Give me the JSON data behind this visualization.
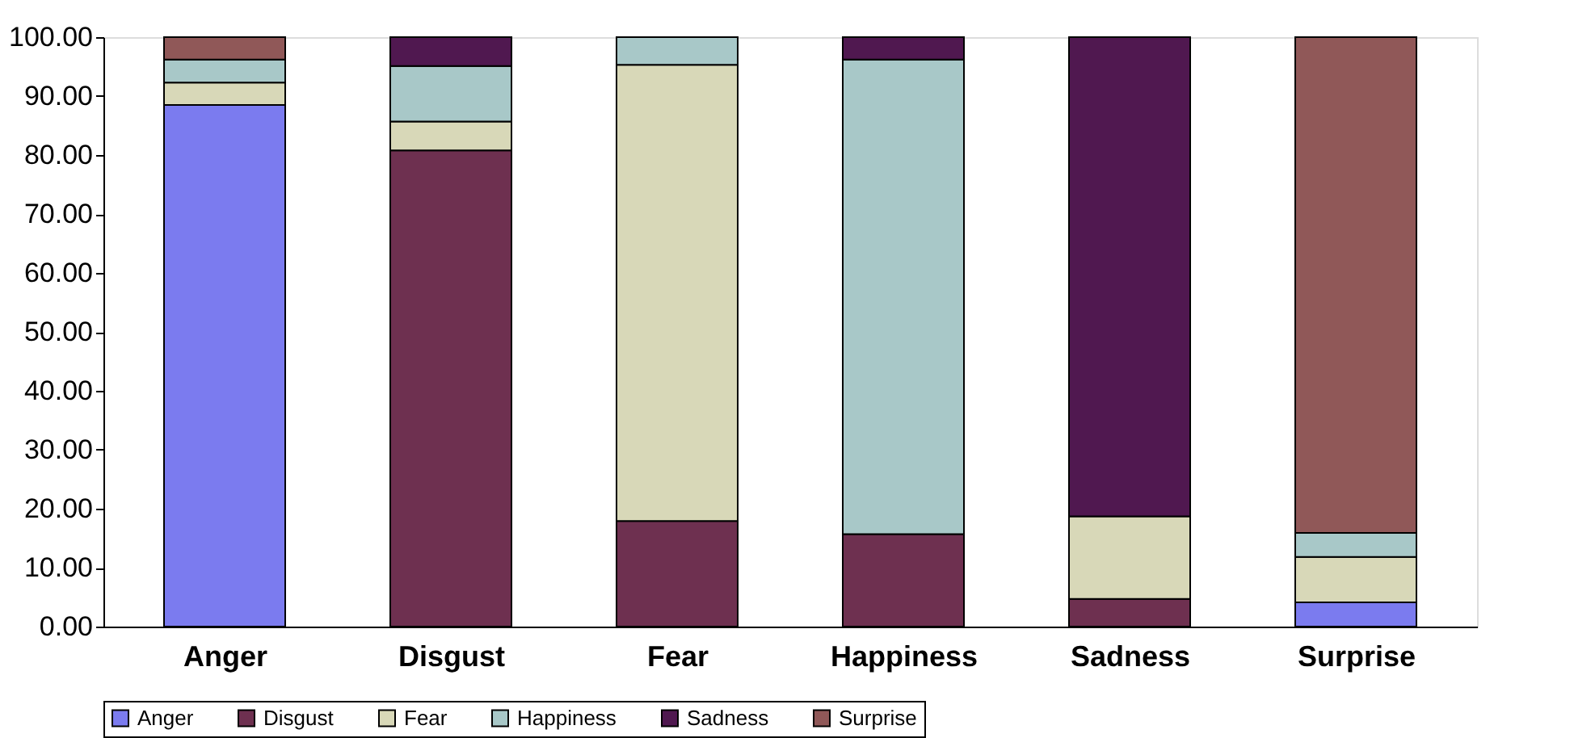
{
  "chart_data": {
    "type": "bar",
    "stacked": true,
    "categories": [
      "Anger",
      "Disgust",
      "Fear",
      "Happiness",
      "Sadness",
      "Surprise"
    ],
    "series": [
      {
        "name": "Anger",
        "color": "#7b7bef",
        "values": [
          88.5,
          0,
          0,
          0,
          0,
          4.1
        ]
      },
      {
        "name": "Disgust",
        "color": "#6e3050",
        "values": [
          0,
          80.8,
          17.9,
          15.7,
          4.7,
          0
        ]
      },
      {
        "name": "Fear",
        "color": "#d8d8b8",
        "values": [
          3.8,
          4.9,
          77.4,
          0,
          14.0,
          7.7
        ]
      },
      {
        "name": "Happiness",
        "color": "#a8c8c8",
        "values": [
          3.9,
          9.4,
          4.7,
          80.5,
          0,
          4.1
        ]
      },
      {
        "name": "Sadness",
        "color": "#501850",
        "values": [
          0,
          4.9,
          0,
          3.8,
          81.3,
          0
        ]
      },
      {
        "name": "Surprise",
        "color": "#905858",
        "values": [
          3.8,
          0,
          0,
          0,
          0,
          84.1
        ]
      }
    ],
    "ylim": [
      0,
      100
    ],
    "yticks": [
      {
        "value": 0,
        "label": "0.00"
      },
      {
        "value": 10,
        "label": "10.00"
      },
      {
        "value": 20,
        "label": "20.00"
      },
      {
        "value": 30,
        "label": "30.00"
      },
      {
        "value": 40,
        "label": "40.00"
      },
      {
        "value": 50,
        "label": "50.00"
      },
      {
        "value": 60,
        "label": "60.00"
      },
      {
        "value": 70,
        "label": "70.00"
      },
      {
        "value": 80,
        "label": "80.00"
      },
      {
        "value": 90,
        "label": "90.00"
      },
      {
        "value": 100,
        "label": "100.00"
      }
    ],
    "grid": false,
    "legend": "bottom"
  }
}
